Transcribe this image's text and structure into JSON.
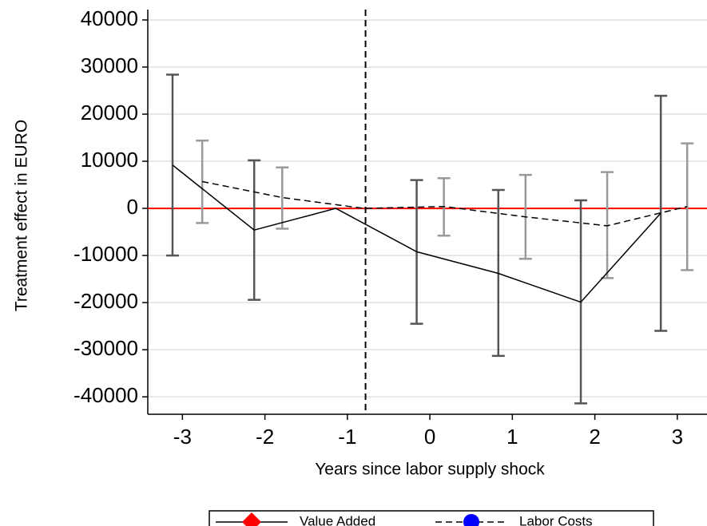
{
  "chart_data": {
    "type": "errorbar-line",
    "x_label": "Years since labor supply shock",
    "y_label": "Treatment effect in EURO",
    "xlim": [
      -3.42,
      3.36
    ],
    "xticks": [
      -3,
      -2,
      -1,
      0,
      1,
      2,
      3
    ],
    "ylim": [
      -43700,
      42200
    ],
    "yticks": [
      -40000,
      -30000,
      -20000,
      -10000,
      0,
      10000,
      20000,
      30000,
      40000
    ],
    "grid": true,
    "vline": -0.78,
    "hline": 0,
    "hline_color": "#ff0000",
    "legend": "bottom",
    "series": [
      {
        "name": "Value Added",
        "color": "#ff0000",
        "marker": "diamond",
        "line_style": "solid",
        "errorbar_color": "#555555",
        "x": [
          -3.12,
          -2.13,
          -1.14,
          -0.16,
          0.83,
          1.83,
          2.8
        ],
        "values": [
          9200,
          -4600,
          0,
          -9200,
          -13800,
          -19900,
          -1000
        ],
        "ci_lower": [
          -10000,
          -19400,
          null,
          -24500,
          -31300,
          -41400,
          -26000
        ],
        "ci_upper": [
          28400,
          10200,
          null,
          6000,
          3900,
          1700,
          23900
        ]
      },
      {
        "name": "Labor Costs",
        "color": "#0000ff",
        "marker": "circle",
        "line_style": "dashed",
        "errorbar_color": "#999999",
        "x": [
          -2.76,
          -1.79,
          -0.8,
          0.17,
          1.16,
          2.15,
          3.12
        ],
        "values": [
          5700,
          2300,
          0,
          400,
          -1800,
          -3700,
          400
        ],
        "ci_lower": [
          -3100,
          -4300,
          null,
          -5800,
          -10700,
          -14800,
          -13100
        ],
        "ci_upper": [
          14400,
          8700,
          null,
          6400,
          7100,
          7700,
          13800
        ]
      }
    ]
  }
}
